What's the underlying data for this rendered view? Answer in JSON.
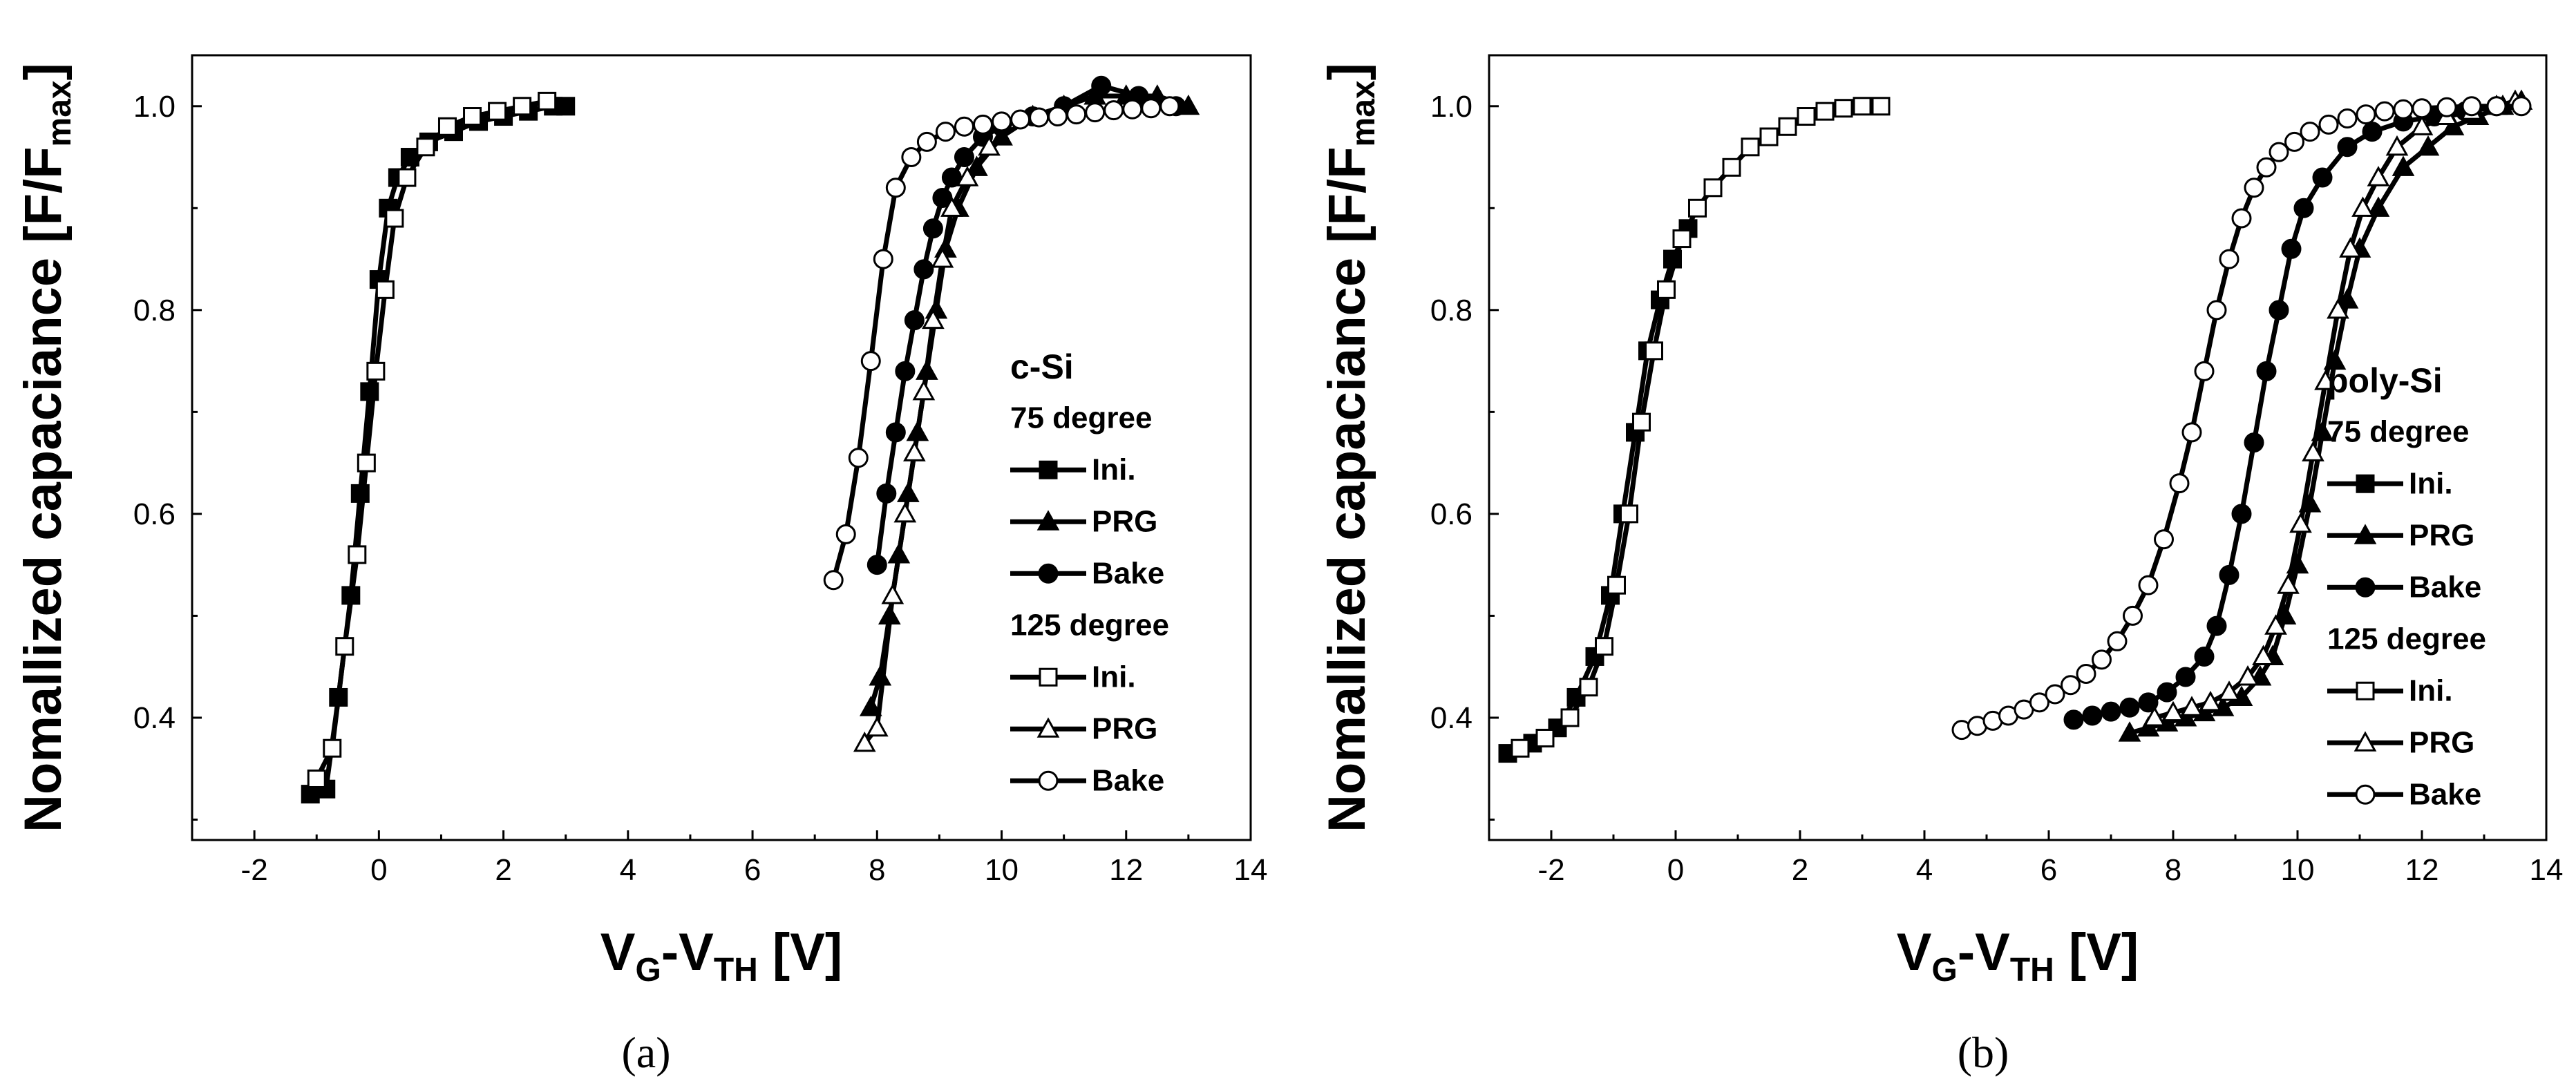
{
  "figure": {
    "panel_labels": [
      "(a)",
      "(b)"
    ]
  },
  "chart_data": [
    {
      "type": "scatter",
      "panel": "(a)",
      "xlabel": {
        "main": "V",
        "sub1": "G",
        "mid": "-V",
        "sub2": "TH",
        "tail": " [V]"
      },
      "ylabel": {
        "main": "Nomallized capaciance [F/F",
        "sub": "max",
        "tail": "]"
      },
      "xlim": [
        -3,
        14
      ],
      "ylim": [
        0.28,
        1.05
      ],
      "xticks": [
        -2,
        0,
        2,
        4,
        6,
        8,
        10,
        12,
        14
      ],
      "yticks": [
        0.4,
        0.6,
        0.8,
        1.0
      ],
      "ytick_labels": [
        "0.4",
        "0.6",
        "0.8",
        "1.0"
      ],
      "legend": {
        "position": "right",
        "title": "c-Si",
        "group1": "75 degree",
        "group2": "125 degree"
      },
      "series": [
        {
          "name": "Ini.",
          "group": "75 degree",
          "marker": "square",
          "filled": true,
          "x": [
            -1.1,
            -0.85,
            -0.65,
            -0.45,
            -0.3,
            -0.15,
            0.0,
            0.15,
            0.3,
            0.5,
            0.8,
            1.2,
            1.6,
            2.0,
            2.4,
            2.8,
            3.0
          ],
          "y": [
            0.325,
            0.33,
            0.42,
            0.52,
            0.62,
            0.72,
            0.83,
            0.9,
            0.93,
            0.95,
            0.965,
            0.975,
            0.985,
            0.99,
            0.995,
            1.0,
            1.0
          ]
        },
        {
          "name": "PRG",
          "group": "75 degree",
          "marker": "triangle",
          "filled": true,
          "x": [
            7.9,
            8.05,
            8.2,
            8.35,
            8.5,
            8.65,
            8.8,
            8.95,
            9.1,
            9.3,
            9.6,
            10.0,
            10.5,
            11.0,
            11.5,
            12.0,
            12.5,
            13.0
          ],
          "y": [
            0.41,
            0.44,
            0.5,
            0.56,
            0.62,
            0.68,
            0.74,
            0.8,
            0.86,
            0.9,
            0.94,
            0.97,
            0.99,
            1.0,
            1.01,
            1.01,
            1.01,
            1.0
          ]
        },
        {
          "name": "Bake",
          "group": "75 degree",
          "marker": "circle",
          "filled": true,
          "x": [
            8.0,
            8.15,
            8.3,
            8.45,
            8.6,
            8.75,
            8.9,
            9.05,
            9.2,
            9.4,
            9.7,
            10.0,
            10.5,
            11.0,
            11.6,
            12.2,
            12.8
          ],
          "y": [
            0.55,
            0.62,
            0.68,
            0.74,
            0.79,
            0.84,
            0.88,
            0.91,
            0.93,
            0.95,
            0.97,
            0.98,
            0.99,
            1.0,
            1.02,
            1.01,
            1.0
          ]
        },
        {
          "name": "Ini.",
          "group": "125 degree",
          "marker": "square",
          "filled": false,
          "x": [
            -1.0,
            -0.75,
            -0.55,
            -0.35,
            -0.2,
            -0.05,
            0.1,
            0.25,
            0.45,
            0.75,
            1.1,
            1.5,
            1.9,
            2.3,
            2.7
          ],
          "y": [
            0.34,
            0.37,
            0.47,
            0.56,
            0.65,
            0.74,
            0.82,
            0.89,
            0.93,
            0.96,
            0.98,
            0.99,
            0.995,
            1.0,
            1.005
          ]
        },
        {
          "name": "PRG",
          "group": "125 degree",
          "marker": "triangle",
          "filled": false,
          "x": [
            7.8,
            8.0,
            8.25,
            8.45,
            8.6,
            8.75,
            8.9,
            9.05,
            9.2,
            9.45,
            9.8
          ],
          "y": [
            0.375,
            0.39,
            0.52,
            0.6,
            0.66,
            0.72,
            0.79,
            0.85,
            0.9,
            0.93,
            0.96
          ]
        },
        {
          "name": "Bake",
          "group": "125 degree",
          "marker": "circle",
          "filled": false,
          "x": [
            7.3,
            7.5,
            7.7,
            7.9,
            8.1,
            8.3,
            8.55,
            8.8,
            9.1,
            9.4,
            9.7,
            10.0,
            10.3,
            10.6,
            10.9,
            11.2,
            11.5,
            11.8,
            12.1,
            12.4,
            12.7
          ],
          "y": [
            0.535,
            0.58,
            0.655,
            0.75,
            0.85,
            0.92,
            0.95,
            0.965,
            0.975,
            0.98,
            0.982,
            0.985,
            0.987,
            0.989,
            0.99,
            0.992,
            0.994,
            0.996,
            0.997,
            0.998,
            1.0
          ]
        }
      ]
    },
    {
      "type": "scatter",
      "panel": "(b)",
      "xlabel": {
        "main": "V",
        "sub1": "G",
        "mid": "-V",
        "sub2": "TH",
        "tail": " [V]"
      },
      "ylabel": {
        "main": "Nomallized capaciance [F/F",
        "sub": "max",
        "tail": "]"
      },
      "xlim": [
        -3,
        14
      ],
      "ylim": [
        0.28,
        1.05
      ],
      "xticks": [
        -2,
        0,
        2,
        4,
        6,
        8,
        10,
        12,
        14
      ],
      "yticks": [
        0.4,
        0.6,
        0.8,
        1.0
      ],
      "ytick_labels": [
        "0.4",
        "0.6",
        "0.8",
        "1.0"
      ],
      "legend": {
        "position": "right",
        "title": "poly-Si",
        "group1": "75 degree",
        "group2": "125 degree"
      },
      "series": [
        {
          "name": "Ini.",
          "group": "75 degree",
          "marker": "square",
          "filled": true,
          "x": [
            -2.7,
            -2.3,
            -1.9,
            -1.6,
            -1.3,
            -1.05,
            -0.85,
            -0.65,
            -0.45,
            -0.25,
            -0.05,
            0.2
          ],
          "y": [
            0.365,
            0.375,
            0.39,
            0.42,
            0.46,
            0.52,
            0.6,
            0.68,
            0.76,
            0.81,
            0.85,
            0.88
          ]
        },
        {
          "name": "PRG",
          "group": "75 degree",
          "marker": "triangle",
          "filled": true,
          "x": [
            7.3,
            7.6,
            7.9,
            8.2,
            8.5,
            8.8,
            9.1,
            9.4,
            9.6,
            9.8,
            10.0,
            10.2,
            10.4,
            10.6,
            10.8,
            11.0,
            11.3,
            11.7,
            12.1,
            12.5,
            12.9,
            13.3,
            13.6
          ],
          "y": [
            0.385,
            0.39,
            0.395,
            0.4,
            0.405,
            0.41,
            0.42,
            0.44,
            0.46,
            0.5,
            0.55,
            0.61,
            0.68,
            0.75,
            0.81,
            0.86,
            0.9,
            0.94,
            0.96,
            0.98,
            0.99,
            1.0,
            1.005
          ]
        },
        {
          "name": "Bake",
          "group": "75 degree",
          "marker": "circle",
          "filled": true,
          "x": [
            6.4,
            6.7,
            7.0,
            7.3,
            7.6,
            7.9,
            8.2,
            8.5,
            8.7,
            8.9,
            9.1,
            9.3,
            9.5,
            9.7,
            9.9,
            10.1,
            10.4,
            10.8,
            11.2,
            11.7,
            12.2,
            12.7,
            13.2
          ],
          "y": [
            0.398,
            0.402,
            0.406,
            0.41,
            0.415,
            0.425,
            0.44,
            0.46,
            0.49,
            0.54,
            0.6,
            0.67,
            0.74,
            0.8,
            0.86,
            0.9,
            0.93,
            0.96,
            0.975,
            0.985,
            0.99,
            0.995,
            1.0
          ]
        },
        {
          "name": "Ini.",
          "group": "125 degree",
          "marker": "square",
          "filled": false,
          "x": [
            -2.5,
            -2.1,
            -1.7,
            -1.4,
            -1.15,
            -0.95,
            -0.75,
            -0.55,
            -0.35,
            -0.15,
            0.1,
            0.35,
            0.6,
            0.9,
            1.2,
            1.5,
            1.8,
            2.1,
            2.4,
            2.7,
            3.0,
            3.3
          ],
          "y": [
            0.37,
            0.38,
            0.4,
            0.43,
            0.47,
            0.53,
            0.6,
            0.69,
            0.76,
            0.82,
            0.87,
            0.9,
            0.92,
            0.94,
            0.96,
            0.97,
            0.98,
            0.99,
            0.995,
            0.998,
            1.0,
            1.0
          ]
        },
        {
          "name": "PRG",
          "group": "125 degree",
          "marker": "triangle",
          "filled": false,
          "x": [
            7.7,
            8.0,
            8.3,
            8.6,
            8.9,
            9.2,
            9.45,
            9.65,
            9.85,
            10.05,
            10.25,
            10.45,
            10.65,
            10.85,
            11.05,
            11.3,
            11.6,
            12.0,
            12.4,
            12.8,
            13.2,
            13.5
          ],
          "y": [
            0.4,
            0.405,
            0.41,
            0.415,
            0.425,
            0.44,
            0.46,
            0.49,
            0.53,
            0.59,
            0.66,
            0.73,
            0.8,
            0.86,
            0.9,
            0.93,
            0.96,
            0.98,
            0.99,
            0.995,
            1.0,
            1.005
          ]
        },
        {
          "name": "Bake",
          "group": "125 degree",
          "marker": "circle",
          "filled": false,
          "x": [
            4.6,
            4.85,
            5.1,
            5.35,
            5.6,
            5.85,
            6.1,
            6.35,
            6.6,
            6.85,
            7.1,
            7.35,
            7.6,
            7.85,
            8.1,
            8.3,
            8.5,
            8.7,
            8.9,
            9.1,
            9.3,
            9.5,
            9.7,
            9.95,
            10.2,
            10.5,
            10.8,
            11.1,
            11.4,
            11.7,
            12.0,
            12.4,
            12.8,
            13.2,
            13.6
          ],
          "y": [
            0.388,
            0.392,
            0.397,
            0.402,
            0.408,
            0.415,
            0.423,
            0.432,
            0.443,
            0.457,
            0.475,
            0.5,
            0.53,
            0.575,
            0.63,
            0.68,
            0.74,
            0.8,
            0.85,
            0.89,
            0.92,
            0.94,
            0.955,
            0.965,
            0.975,
            0.982,
            0.988,
            0.992,
            0.995,
            0.997,
            0.998,
            0.999,
            1.0,
            1.0,
            1.0
          ]
        }
      ]
    }
  ]
}
